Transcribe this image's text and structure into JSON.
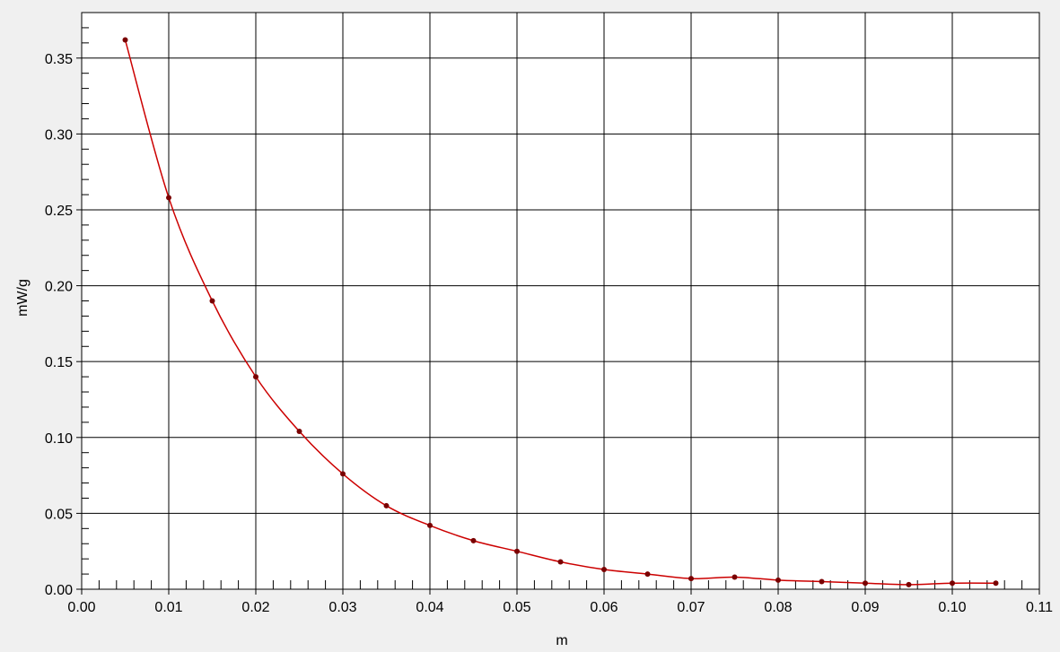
{
  "chart_data": {
    "type": "line",
    "title": "",
    "xlabel": "m",
    "ylabel": "mW/g",
    "xlim": [
      0.0,
      0.11
    ],
    "ylim": [
      0.0,
      0.38
    ],
    "x_ticks": [
      0.0,
      0.01,
      0.02,
      0.03,
      0.04,
      0.05,
      0.06,
      0.07,
      0.08,
      0.09,
      0.1,
      0.11
    ],
    "x_tick_labels": [
      "0.00",
      "0.01",
      "0.02",
      "0.03",
      "0.04",
      "0.05",
      "0.06",
      "0.07",
      "0.08",
      "0.09",
      "0.10",
      "0.11"
    ],
    "y_ticks": [
      0.0,
      0.05,
      0.1,
      0.15,
      0.2,
      0.25,
      0.3,
      0.35
    ],
    "y_tick_labels": [
      "0.00",
      "0.05",
      "0.10",
      "0.15",
      "0.20",
      "0.25",
      "0.30",
      "0.35"
    ],
    "grid": true,
    "series": [
      {
        "color": "#cc0000",
        "marker_color": "#7a0000",
        "x": [
          0.005,
          0.01,
          0.015,
          0.02,
          0.025,
          0.03,
          0.035,
          0.04,
          0.045,
          0.05,
          0.055,
          0.06,
          0.065,
          0.07,
          0.075,
          0.08,
          0.085,
          0.09,
          0.095,
          0.1,
          0.105
        ],
        "y": [
          0.362,
          0.258,
          0.19,
          0.14,
          0.104,
          0.076,
          0.055,
          0.042,
          0.032,
          0.025,
          0.018,
          0.013,
          0.01,
          0.007,
          0.008,
          0.006,
          0.005,
          0.004,
          0.003,
          0.004,
          0.004
        ]
      }
    ]
  }
}
